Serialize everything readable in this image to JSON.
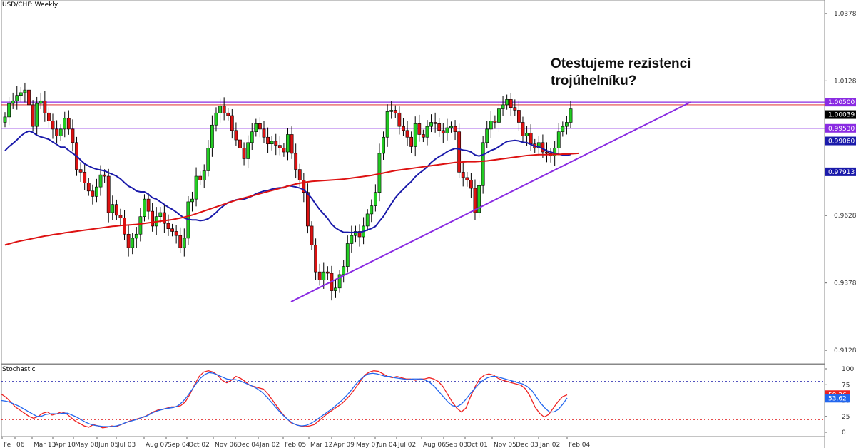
{
  "chart_title": "USD/CHF: Weekly",
  "indicator_title": "Stochastic",
  "annotation": {
    "line1": "Otestujeme rezistenci",
    "line2": "trojúhelníku?"
  },
  "colors": {
    "bull": "#22cc22",
    "bear": "#dd1111",
    "ma_fast": "#1a1aaa",
    "ma_slow": "#dd1111",
    "trend": "#8a2be2",
    "stoch_k": "#ee2222",
    "stoch_d": "#2266ee",
    "level_line": "#8a2be2"
  },
  "chart_data": [
    {
      "type": "candlestick",
      "title": "USD/CHF: Weekly",
      "ylim": [
        0.90789,
        1.04289
      ],
      "y_ticks": [
        "1.03789",
        "1.01289",
        "0.96289",
        "0.93789",
        "0.91289"
      ],
      "x_ticks": [
        "Fe",
        "06",
        "Mar 13",
        "Apr 10",
        "May 08",
        "Jun 05",
        "Jul 03",
        "Aug 07",
        "Sep 04",
        "Oct 02",
        "Nov 06",
        "Dec 04",
        "Jan 02",
        "Feb 05",
        "Mar 12",
        "Apr 09",
        "May 07",
        "Jun 04",
        "Jul 02",
        "Aug 06",
        "Sep 03",
        "Oct 01",
        "Nov 05",
        "Dec 03",
        "Jan 02",
        "Feb 04"
      ],
      "closes": [
        0.9995,
        1.0045,
        1.0055,
        1.0075,
        1.0085,
        1.0095,
        1.004,
        0.996,
        1.0045,
        1.0055,
        1.001,
        0.998,
        0.995,
        0.9925,
        0.995,
        0.999,
        0.995,
        0.99,
        0.98,
        0.979,
        0.975,
        0.972,
        0.97,
        0.9735,
        0.978,
        0.9775,
        0.964,
        0.967,
        0.963,
        0.962,
        0.956,
        0.951,
        0.9545,
        0.956,
        0.9625,
        0.969,
        0.9645,
        0.959,
        0.9625,
        0.964,
        0.96,
        0.958,
        0.957,
        0.9555,
        0.951,
        0.9545,
        0.968,
        0.969,
        0.9775,
        0.976,
        0.9795,
        0.988,
        0.9965,
        1.001,
        1.0035,
        1.001,
        1.0,
        0.9945,
        0.991,
        0.988,
        0.984,
        0.99,
        0.994,
        0.997,
        0.995,
        0.992,
        0.9895,
        0.9905,
        0.989,
        0.988,
        0.9865,
        0.993,
        0.986,
        0.98,
        0.976,
        0.9715,
        0.959,
        0.952,
        0.942,
        0.939,
        0.942,
        0.9415,
        0.935,
        0.936,
        0.941,
        0.944,
        0.9525,
        0.9555,
        0.957,
        0.955,
        0.959,
        0.9635,
        0.9665,
        0.9715,
        0.986,
        0.992,
        1.0015,
        1.002,
        1.001,
        0.996,
        0.9945,
        0.992,
        0.9885,
        0.997,
        0.993,
        0.992,
        0.996,
        0.9975,
        0.997,
        0.9945,
        0.9935,
        0.9955,
        0.996,
        0.994,
        0.979,
        0.977,
        0.976,
        0.973,
        0.964,
        0.974,
        0.99,
        0.995,
        0.998,
        0.9975,
        1.0025,
        1.004,
        1.006,
        1.003,
        1.002,
        0.9975,
        0.9925,
        0.9935,
        0.9895,
        0.988,
        0.99,
        0.9865,
        0.986,
        0.985,
        0.988,
        0.994,
        0.996,
        0.9975,
        1.0025
      ],
      "series": [
        {
          "name": "",
          "type": "moving-average",
          "values": [
            0.987,
            0.9885,
            0.9897,
            0.991,
            0.9925,
            0.9936,
            0.9943,
            0.9938,
            0.9927,
            0.9921,
            0.9917,
            0.9912,
            0.9902,
            0.9893,
            0.9883,
            0.9883,
            0.9871,
            0.986,
            0.985,
            0.9835,
            0.9821,
            0.9813,
            0.9806,
            0.9801,
            0.9798,
            0.9795,
            0.9788,
            0.9782,
            0.9775,
            0.9765,
            0.9751,
            0.9738,
            0.9731,
            0.972,
            0.9717,
            0.9717,
            0.9708,
            0.9695,
            0.969,
            0.968,
            0.967,
            0.966,
            0.9652,
            0.9642,
            0.963,
            0.962,
            0.9615,
            0.9613,
            0.9613,
            0.961,
            0.9612,
            0.9617,
            0.9628,
            0.964,
            0.9655,
            0.9667,
            0.9677,
            0.9682,
            0.9687,
            0.969,
            0.969,
            0.9695,
            0.9701,
            0.971,
            0.9715,
            0.972,
            0.9722,
            0.9727,
            0.973,
            0.9732,
            0.9732,
            0.974,
            0.9738,
            0.9735,
            0.9731,
            0.9725,
            0.971,
            0.9693,
            0.9671,
            0.9651,
            0.9635,
            0.9618,
            0.9597,
            0.9583,
            0.9574,
            0.9567,
            0.9567,
            0.9566,
            0.9567,
            0.9567,
            0.957,
            0.9576,
            0.9581,
            0.9589,
            0.9608,
            0.9626,
            0.965,
            0.9673,
            0.9695,
            0.9712,
            0.9727,
            0.9742,
            0.9755,
            0.9773,
            0.9786,
            0.9797,
            0.981,
            0.9826,
            0.9838,
            0.9848,
            0.9856,
            0.9866,
            0.9873,
            0.9878,
            0.9876,
            0.9872,
            0.987,
            0.9865,
            0.9854,
            0.985,
            0.9855,
            0.9862,
            0.9871,
            0.9876,
            0.9885,
            0.9895,
            0.9904,
            0.9906,
            0.9908,
            0.9906,
            0.9901,
            0.99,
            0.9893,
            0.9887,
            0.9884,
            0.9877,
            0.987,
            0.9865,
            0.986,
            0.9857,
            0.9854,
            0.9852,
            0.9856
          ]
        },
        {
          "name": "",
          "type": "moving-average",
          "values": [
            0.952,
            0.9524,
            0.9528,
            0.9532,
            0.9535,
            0.9538,
            0.9541,
            0.9544,
            0.9547,
            0.955,
            0.9553,
            0.9555,
            0.9558,
            0.956,
            0.9562,
            0.9565,
            0.9567,
            0.9569,
            0.9571,
            0.9573,
            0.9575,
            0.9577,
            0.9579,
            0.9581,
            0.9583,
            0.9585,
            0.9587,
            0.9589,
            0.959,
            0.9592,
            0.9593,
            0.9594,
            0.9595,
            0.9596,
            0.9598,
            0.96,
            0.9602,
            0.9604,
            0.9606,
            0.9608,
            0.961,
            0.9612,
            0.9614,
            0.9617,
            0.962,
            0.9623,
            0.9627,
            0.9631,
            0.9636,
            0.9641,
            0.9646,
            0.9651,
            0.9656,
            0.9661,
            0.9666,
            0.9671,
            0.9676,
            0.9681,
            0.9686,
            0.969,
            0.9694,
            0.9698,
            0.9702,
            0.9706,
            0.971,
            0.9714,
            0.9718,
            0.9722,
            0.9726,
            0.973,
            0.9734,
            0.9738,
            0.9742,
            0.9746,
            0.9749,
            0.9752,
            0.9754,
            0.9756,
            0.9757,
            0.9758,
            0.9759,
            0.976,
            0.9761,
            0.9762,
            0.9763,
            0.9764,
            0.9766,
            0.9768,
            0.977,
            0.9772,
            0.9774,
            0.9776,
            0.9778,
            0.9781,
            0.9784,
            0.9787,
            0.979,
            0.9793,
            0.9796,
            0.9798,
            0.98,
            0.9802,
            0.9804,
            0.9806,
            0.9808,
            0.981,
            0.9812,
            0.9814,
            0.9816,
            0.9818,
            0.982,
            0.9822,
            0.9824,
            0.9826,
            0.9827,
            0.9828,
            0.9829,
            0.9829,
            0.9829,
            0.983,
            0.9831,
            0.9832,
            0.9834,
            0.9836,
            0.9838,
            0.984,
            0.9842,
            0.9844,
            0.9846,
            0.9848,
            0.985,
            0.9852,
            0.9853,
            0.9854,
            0.9855,
            0.9855,
            0.9855,
            0.9856,
            0.9856,
            0.9856,
            0.9857,
            0.9857,
            0.9858,
            0.9859,
            0.986
          ]
        }
      ],
      "levels": [
        {
          "label": "1.00500",
          "value": 1.005,
          "color": "#8a2be2"
        },
        {
          "label": "1.00039",
          "value": 1.00039,
          "color": "#000000"
        },
        {
          "label": "0.99530",
          "value": 0.9953,
          "color": "#8a2be2"
        },
        {
          "label": "0.99060",
          "value": 0.9906,
          "color": "#1a1aaa"
        },
        {
          "label": "0.97913",
          "value": 0.97913,
          "color": "#1a1aaa"
        }
      ]
    },
    {
      "type": "line",
      "title": "Stochastic",
      "ylim": [
        0,
        100
      ],
      "y_ticks": [
        "100",
        "75",
        "50",
        "25",
        "0"
      ],
      "levels": [
        80,
        20
      ],
      "value_labels": [
        "59.26",
        "53.62"
      ],
      "series": [
        {
          "name": "",
          "values": [
            60,
            55,
            48,
            40,
            35,
            30,
            25,
            22,
            25,
            30,
            32,
            27,
            29,
            32,
            30,
            24,
            18,
            14,
            10,
            8,
            12,
            10,
            7,
            8,
            10,
            9,
            12,
            15,
            18,
            20,
            22,
            24,
            28,
            32,
            35,
            36,
            38,
            40,
            40,
            42,
            48,
            60,
            75,
            88,
            95,
            97,
            95,
            90,
            82,
            78,
            82,
            88,
            85,
            80,
            74,
            72,
            70,
            68,
            60,
            50,
            40,
            30,
            22,
            15,
            12,
            10,
            9,
            10,
            12,
            18,
            24,
            30,
            35,
            40,
            45,
            52,
            60,
            70,
            80,
            90,
            95,
            97,
            96,
            92,
            88,
            86,
            88,
            86,
            84,
            84,
            82,
            84,
            84,
            86,
            84,
            80,
            72,
            60,
            48,
            38,
            32,
            38,
            56,
            72,
            84,
            90,
            92,
            90,
            85,
            82,
            80,
            78,
            76,
            74,
            68,
            56,
            40,
            30,
            24,
            28,
            38,
            48,
            56,
            59
          ]
        },
        {
          "name": "",
          "values": [
            50,
            49,
            47,
            44,
            41,
            37,
            33,
            29,
            25,
            25,
            28,
            29,
            29,
            29,
            30,
            30,
            27,
            24,
            20,
            16,
            13,
            11,
            10,
            9,
            9,
            9,
            10,
            12,
            15,
            17,
            19,
            21,
            24,
            26,
            30,
            33,
            35,
            37,
            38,
            39,
            42,
            48,
            56,
            66,
            76,
            85,
            91,
            94,
            93,
            90,
            87,
            84,
            83,
            83,
            81,
            78,
            75,
            72,
            68,
            63,
            56,
            48,
            40,
            32,
            25,
            19,
            14,
            11,
            10,
            11,
            14,
            18,
            23,
            28,
            33,
            38,
            44,
            50,
            57,
            65,
            74,
            82,
            88,
            92,
            93,
            92,
            90,
            88,
            88,
            86,
            85,
            84,
            83,
            84,
            84,
            84,
            82,
            78,
            72,
            64,
            56,
            48,
            42,
            40,
            44,
            51,
            60,
            68,
            76,
            82,
            86,
            88,
            88,
            86,
            84,
            82,
            80,
            78,
            76,
            72,
            66,
            56,
            46,
            38,
            32,
            32,
            36,
            44,
            54
          ]
        }
      ]
    }
  ]
}
